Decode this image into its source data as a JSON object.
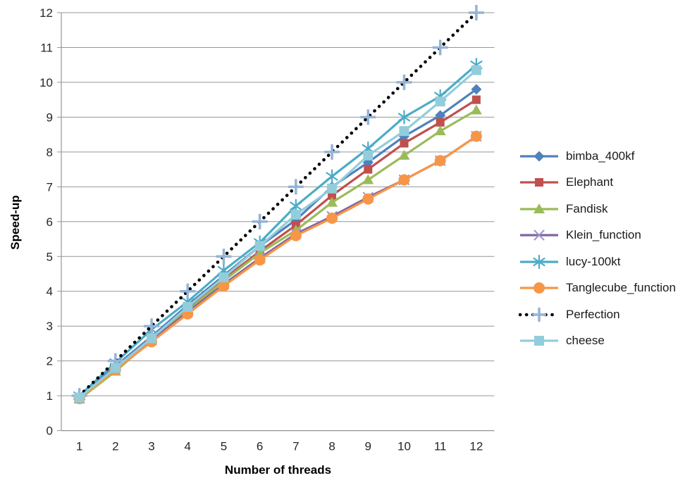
{
  "chart_data": {
    "type": "line",
    "title": "",
    "xlabel": "Number of threads",
    "ylabel": "Speed-up",
    "categories": [
      1,
      2,
      3,
      4,
      5,
      6,
      7,
      8,
      9,
      10,
      11,
      12
    ],
    "yticks": [
      0,
      1,
      2,
      3,
      4,
      5,
      6,
      7,
      8,
      9,
      10,
      11,
      12
    ],
    "ylim": [
      0,
      12
    ],
    "grid": true,
    "legend_position": "right",
    "series": [
      {
        "name": "bimba_400kf",
        "color": "#4F81BD",
        "marker": "diamond",
        "marker_color": "#4F81BD",
        "line_style": "solid",
        "values": [
          0.97,
          1.85,
          2.7,
          3.6,
          4.45,
          5.3,
          6.05,
          7.0,
          7.7,
          8.45,
          9.05,
          9.8
        ]
      },
      {
        "name": "Elephant",
        "color": "#C0504D",
        "marker": "square",
        "marker_color": "#C0504D",
        "line_style": "solid",
        "values": [
          0.95,
          1.8,
          2.65,
          3.5,
          4.35,
          5.15,
          5.9,
          6.75,
          7.5,
          8.25,
          8.85,
          9.5
        ]
      },
      {
        "name": "Fandisk",
        "color": "#9BBB59",
        "marker": "triangle",
        "marker_color": "#9BBB59",
        "line_style": "solid",
        "values": [
          0.9,
          1.7,
          2.6,
          3.45,
          4.3,
          5.1,
          5.75,
          6.55,
          7.2,
          7.9,
          8.6,
          9.2
        ]
      },
      {
        "name": "Klein_function",
        "color": "#8064A2",
        "marker": "x",
        "marker_color": "#9C93CC",
        "line_style": "solid",
        "values": [
          0.95,
          1.8,
          2.6,
          3.4,
          4.2,
          4.95,
          5.65,
          6.15,
          6.7,
          7.2,
          7.75,
          8.45
        ]
      },
      {
        "name": "lucy-100kt",
        "color": "#4BACC6",
        "marker": "asterisk",
        "marker_color": "#4BACC6",
        "line_style": "solid",
        "values": [
          1.0,
          1.95,
          2.9,
          3.7,
          4.6,
          5.4,
          6.45,
          7.3,
          8.1,
          9.0,
          9.6,
          10.5
        ]
      },
      {
        "name": "Tanglecube_function",
        "color": "#F79646",
        "marker": "circle",
        "marker_color": "#F79646",
        "line_style": "solid",
        "values": [
          0.92,
          1.75,
          2.55,
          3.35,
          4.15,
          4.9,
          5.6,
          6.1,
          6.65,
          7.2,
          7.75,
          8.45
        ]
      },
      {
        "name": "Perfection",
        "color": "#000000",
        "marker": "plus",
        "marker_color": "#95B3D7",
        "line_style": "dotted",
        "values": [
          1,
          2,
          3,
          4,
          5,
          6,
          7,
          8,
          9,
          10,
          11,
          12
        ]
      },
      {
        "name": "cheese",
        "color": "#92CDDC",
        "marker": "bigsquare",
        "marker_color": "#92CDDC",
        "line_style": "solid",
        "values": [
          0.95,
          1.8,
          2.65,
          3.55,
          4.4,
          5.3,
          6.2,
          6.95,
          7.9,
          8.6,
          9.45,
          10.35
        ]
      }
    ]
  },
  "style": {
    "grid_color": "#969696",
    "axis_color": "#969696",
    "tick_text_color": "#262626"
  }
}
